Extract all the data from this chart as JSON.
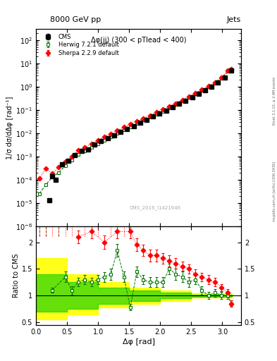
{
  "title_left": "8000 GeV pp",
  "title_right": "Jets",
  "annotation": "Δφ(jj) (300 < pTlead < 400)",
  "watermark": "CMS_2016_I1421646",
  "right_label": "Rivet 3.1.10, ≥ 2.9M events",
  "right_label2": "mcplots.cern.ch [arXiv:1306.3436]",
  "ylabel_main": "1/σ dσ/dΔφ [rad⁻¹]",
  "ylabel_ratio": "Ratio to CMS",
  "xlabel": "Δφ [rad]",
  "ylim_main": [
    1e-06,
    300.0
  ],
  "ylim_ratio": [
    0.45,
    2.3
  ],
  "xlim": [
    0.0,
    3.3
  ],
  "cms_x": [
    0.209,
    0.262,
    0.314,
    0.419,
    0.524,
    0.628,
    0.733,
    0.838,
    0.942,
    1.047,
    1.152,
    1.257,
    1.361,
    1.466,
    1.571,
    1.676,
    1.78,
    1.885,
    1.99,
    2.094,
    2.199,
    2.304,
    2.408,
    2.513,
    2.618,
    2.723,
    2.827,
    2.932,
    3.037,
    3.141
  ],
  "cms_y": [
    1.3e-05,
    0.00014,
    0.0001,
    0.00045,
    0.00065,
    0.0011,
    0.0017,
    0.002,
    0.0032,
    0.0046,
    0.0061,
    0.008,
    0.011,
    0.015,
    0.02,
    0.028,
    0.038,
    0.051,
    0.07,
    0.095,
    0.13,
    0.18,
    0.25,
    0.35,
    0.5,
    0.7,
    1.0,
    1.5,
    2.5,
    5.0
  ],
  "cms_yerr": [
    2e-06,
    2e-05,
    1e-05,
    4e-05,
    6e-05,
    0.0001,
    0.00015,
    0.00018,
    0.0003,
    0.0004,
    0.0005,
    0.0007,
    0.0009,
    0.0012,
    0.0016,
    0.0022,
    0.003,
    0.004,
    0.0055,
    0.007,
    0.01,
    0.014,
    0.02,
    0.028,
    0.04,
    0.055,
    0.08,
    0.12,
    0.2,
    0.4
  ],
  "herwig_x": [
    0.052,
    0.157,
    0.262,
    0.366,
    0.471,
    0.576,
    0.68,
    0.785,
    0.89,
    0.994,
    1.099,
    1.204,
    1.309,
    1.413,
    1.518,
    1.623,
    1.728,
    1.832,
    1.937,
    2.042,
    2.147,
    2.251,
    2.356,
    2.461,
    2.566,
    2.67,
    2.775,
    2.88,
    2.985,
    3.089,
    3.141
  ],
  "herwig_y": [
    2.5e-05,
    6e-05,
    0.00013,
    0.0002,
    0.0004,
    0.0007,
    0.0012,
    0.0017,
    0.0025,
    0.0035,
    0.005,
    0.007,
    0.01,
    0.014,
    0.019,
    0.026,
    0.036,
    0.048,
    0.065,
    0.088,
    0.12,
    0.17,
    0.24,
    0.34,
    0.48,
    0.68,
    0.95,
    1.4,
    2.3,
    4.5,
    5.5
  ],
  "herwig_yerr": [
    3e-06,
    5e-06,
    8e-06,
    1.2e-05,
    2e-05,
    4e-05,
    6e-05,
    9e-05,
    0.00013,
    0.00018,
    0.00025,
    0.00035,
    0.0005,
    0.0007,
    0.00095,
    0.0013,
    0.0018,
    0.0024,
    0.0032,
    0.0044,
    0.006,
    0.0085,
    0.012,
    0.017,
    0.024,
    0.034,
    0.047,
    0.07,
    0.115,
    0.22,
    0.27
  ],
  "sherpa_x": [
    0.052,
    0.157,
    0.262,
    0.366,
    0.471,
    0.576,
    0.68,
    0.785,
    0.89,
    0.994,
    1.099,
    1.204,
    1.309,
    1.413,
    1.518,
    1.623,
    1.728,
    1.832,
    1.937,
    2.042,
    2.147,
    2.251,
    2.356,
    2.461,
    2.566,
    2.67,
    2.775,
    2.88,
    2.985,
    3.089,
    3.141
  ],
  "sherpa_y": [
    0.00011,
    0.0003,
    0.00018,
    0.00035,
    0.0006,
    0.001,
    0.0018,
    0.0024,
    0.0035,
    0.005,
    0.007,
    0.0095,
    0.013,
    0.018,
    0.024,
    0.032,
    0.044,
    0.058,
    0.078,
    0.105,
    0.14,
    0.19,
    0.27,
    0.38,
    0.53,
    0.74,
    1.04,
    1.5,
    2.5,
    4.8,
    5.8
  ],
  "sherpa_yerr": [
    1e-05,
    2e-05,
    1.5e-05,
    2.5e-05,
    4e-05,
    7e-05,
    0.00012,
    0.00016,
    0.00023,
    0.00033,
    0.00047,
    0.00064,
    0.00087,
    0.0012,
    0.0016,
    0.0021,
    0.0029,
    0.0039,
    0.0052,
    0.007,
    0.0095,
    0.013,
    0.018,
    0.025,
    0.035,
    0.049,
    0.069,
    0.1,
    0.17,
    0.32,
    0.39
  ],
  "cms_color": "#000000",
  "herwig_color": "#007700",
  "sherpa_color": "#ff0000",
  "herwig_ratio_x": [
    0.052,
    0.157,
    0.262,
    0.366,
    0.471,
    0.576,
    0.68,
    0.785,
    0.89,
    0.994,
    1.099,
    1.204,
    1.309,
    1.413,
    1.518,
    1.623,
    1.728,
    1.832,
    1.937,
    2.042,
    2.147,
    2.251,
    2.356,
    2.461,
    2.566,
    2.67,
    2.775,
    2.88,
    2.985,
    3.089,
    3.141
  ],
  "herwig_ratio_y": [
    99,
    99,
    1.1,
    99,
    1.35,
    1.1,
    1.25,
    1.3,
    1.25,
    1.3,
    1.35,
    1.4,
    1.85,
    1.35,
    0.78,
    1.45,
    1.3,
    1.25,
    1.25,
    1.25,
    1.5,
    1.4,
    1.35,
    1.25,
    1.3,
    1.1,
    1.0,
    1.05,
    1.0,
    1.0,
    0.85
  ],
  "herwig_ratio_yerr": [
    0,
    0,
    0.05,
    0,
    0.1,
    0.08,
    0.08,
    0.09,
    0.08,
    0.09,
    0.09,
    0.1,
    0.12,
    0.1,
    0.06,
    0.1,
    0.09,
    0.09,
    0.09,
    0.09,
    0.1,
    0.1,
    0.1,
    0.09,
    0.09,
    0.08,
    0.07,
    0.07,
    0.07,
    0.07,
    0.06
  ],
  "sherpa_ratio_x": [
    0.052,
    0.157,
    0.262,
    0.366,
    0.471,
    0.576,
    0.68,
    0.785,
    0.89,
    0.994,
    1.099,
    1.204,
    1.309,
    1.413,
    1.518,
    1.623,
    1.728,
    1.832,
    1.937,
    2.042,
    2.147,
    2.251,
    2.356,
    2.461,
    2.566,
    2.67,
    2.775,
    2.88,
    2.985,
    3.089,
    3.141
  ],
  "sherpa_ratio_y": [
    99,
    99,
    99,
    99,
    99,
    99,
    2.1,
    99,
    2.2,
    99,
    2.0,
    99,
    2.2,
    99,
    2.2,
    1.95,
    1.85,
    1.75,
    1.75,
    1.7,
    1.65,
    1.6,
    1.55,
    1.5,
    1.4,
    1.35,
    1.3,
    1.25,
    1.15,
    1.05,
    0.85
  ],
  "sherpa_ratio_yerr": [
    0,
    0,
    0,
    0,
    0,
    0,
    0.12,
    0,
    0.13,
    0,
    0.12,
    0,
    0.13,
    0,
    0.13,
    0.12,
    0.11,
    0.11,
    0.11,
    0.1,
    0.1,
    0.1,
    0.09,
    0.09,
    0.09,
    0.08,
    0.08,
    0.08,
    0.07,
    0.07,
    0.06
  ],
  "band_yellow_xedges": [
    0.0,
    0.5,
    1.0,
    1.5,
    2.0,
    2.5,
    3.15
  ],
  "band_yellow_lo": [
    0.55,
    0.65,
    0.78,
    0.85,
    0.9,
    0.96,
    0.98
  ],
  "band_yellow_hi": [
    1.7,
    1.4,
    1.25,
    1.15,
    1.1,
    1.04,
    1.02
  ],
  "band_green_xedges": [
    0.0,
    0.5,
    1.0,
    1.5,
    2.0,
    2.5,
    3.15
  ],
  "band_green_lo": [
    0.7,
    0.75,
    0.85,
    0.9,
    0.95,
    0.98,
    0.99
  ],
  "band_green_hi": [
    1.4,
    1.25,
    1.15,
    1.1,
    1.05,
    1.02,
    1.01
  ]
}
